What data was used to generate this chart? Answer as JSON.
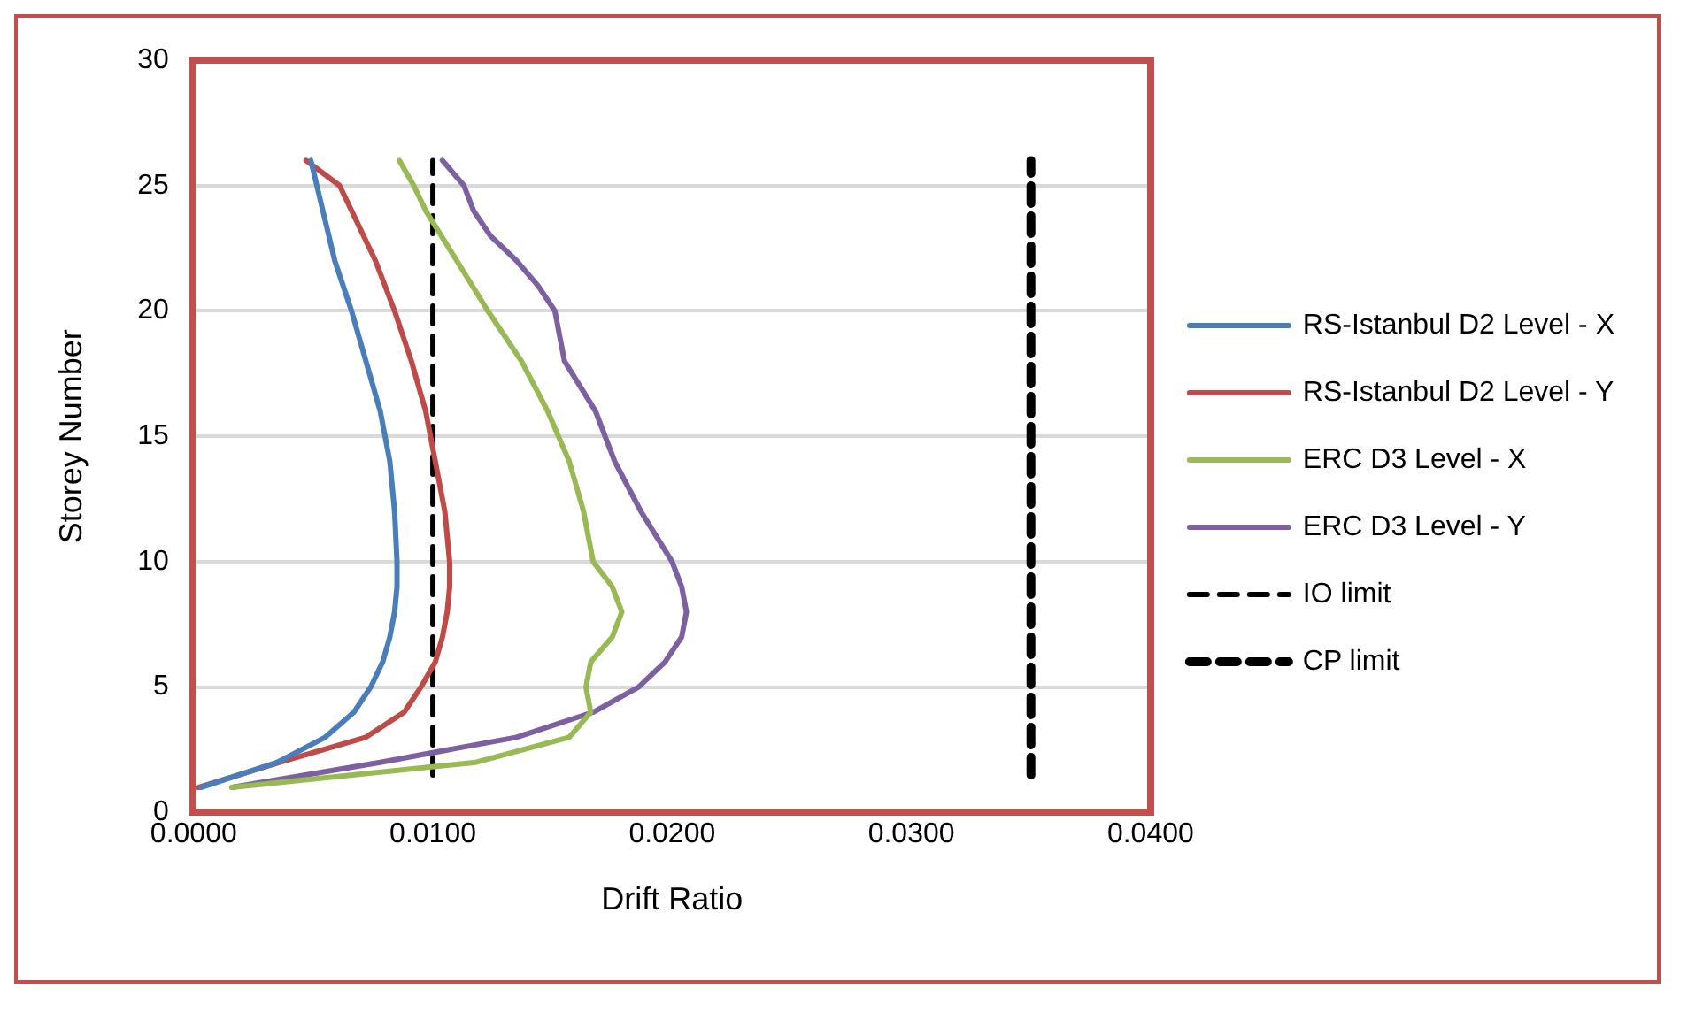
{
  "chart_data": {
    "type": "line",
    "xlabel": "Drift Ratio",
    "ylabel": "Storey Number",
    "xlim": [
      0,
      0.04
    ],
    "xticks": [
      {
        "value": 0,
        "label": "0.0000"
      },
      {
        "value": 0.01,
        "label": "0.0100"
      },
      {
        "value": 0.02,
        "label": "0.0200"
      },
      {
        "value": 0.03,
        "label": "0.0300"
      },
      {
        "value": 0.04,
        "label": "0.0400"
      }
    ],
    "ylim": [
      0,
      30
    ],
    "yticks": [
      0,
      5,
      10,
      15,
      20,
      25,
      30
    ],
    "grid": "y",
    "legend": "right",
    "marker": "none",
    "series": [
      {
        "name": "RS-Istanbul D2 Level - X",
        "color": "#4a7ebb",
        "x": [
          0.0003,
          0.0035,
          0.0055,
          0.0067,
          0.0074,
          0.0079,
          0.0082,
          0.0084,
          0.0085,
          0.0085,
          0.0084,
          0.0082,
          0.0078,
          0.0072,
          0.0066,
          0.0059,
          0.0054,
          0.0049
        ],
        "values": [
          1,
          2,
          3,
          4,
          5,
          6,
          7,
          8,
          9,
          10,
          12,
          14,
          16,
          18,
          20,
          22,
          24,
          26
        ]
      },
      {
        "name": "RS-Istanbul D2 Level - Y",
        "color": "#be4b48",
        "x": [
          0.0002,
          0.0036,
          0.0072,
          0.0088,
          0.0095,
          0.0101,
          0.0104,
          0.0106,
          0.0107,
          0.0107,
          0.0105,
          0.0101,
          0.0097,
          0.0091,
          0.0084,
          0.0076,
          0.0066,
          0.0061,
          0.0047
        ],
        "values": [
          1,
          2,
          3,
          4,
          5,
          6,
          7,
          8,
          9,
          10,
          12,
          14,
          16,
          18,
          20,
          22,
          24,
          25,
          26
        ]
      },
      {
        "name": "ERC D3 Level - X",
        "color": "#98b954",
        "x": [
          0.0016,
          0.0118,
          0.0157,
          0.0166,
          0.0164,
          0.0166,
          0.0175,
          0.0179,
          0.0175,
          0.0167,
          0.0165,
          0.0163,
          0.0157,
          0.0148,
          0.0137,
          0.0123,
          0.011,
          0.0097,
          0.0092,
          0.0086
        ],
        "values": [
          1,
          2,
          3,
          4,
          5,
          6,
          7,
          8,
          9,
          10,
          11,
          12,
          14,
          16,
          18,
          20,
          22,
          24,
          25,
          26
        ]
      },
      {
        "name": "ERC D3 Level - Y",
        "color": "#7d60a0",
        "x": [
          0.0016,
          0.0078,
          0.0135,
          0.0167,
          0.0186,
          0.0197,
          0.0204,
          0.0206,
          0.0204,
          0.02,
          0.0187,
          0.0176,
          0.0168,
          0.0155,
          0.0151,
          0.0144,
          0.0135,
          0.0124,
          0.0117,
          0.0113,
          0.0104
        ],
        "values": [
          1,
          2,
          3,
          4,
          5,
          6,
          7,
          8,
          9,
          10,
          12,
          14,
          16,
          18,
          20,
          21,
          22,
          23,
          24,
          25,
          26
        ]
      },
      {
        "name": "IO limit",
        "color": "#000000",
        "line_style": "dashed",
        "x": [
          0.01,
          0.01
        ],
        "values": [
          1.5,
          26
        ]
      },
      {
        "name": "CP limit",
        "color": "#000000",
        "line_style": "dashed",
        "x": [
          0.035,
          0.035
        ],
        "values": [
          1.5,
          26
        ]
      }
    ]
  }
}
